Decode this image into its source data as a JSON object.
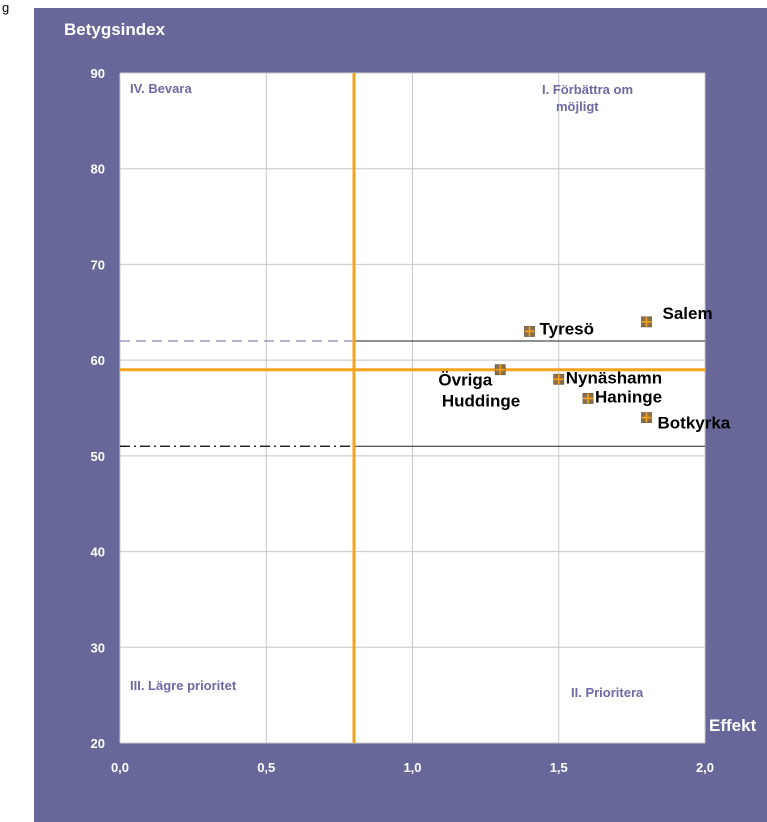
{
  "header": {
    "partial_label": "g"
  },
  "colors": {
    "panel": "#67679a",
    "plot_area": "#ffffff",
    "grid": "#c8c8c8",
    "threshold": "#f5a21c",
    "marker_fill": "#8a6f4e",
    "marker_cross": "#f5a21c",
    "upper_ref": "#8b89bd",
    "lower_ref": "#000000",
    "quadrant_text": "#6b69a6"
  },
  "chart_data": {
    "type": "scatter",
    "ylabel": "Betygsindex",
    "xlabel": "Effekt",
    "xlim": [
      0,
      2.0
    ],
    "ylim": [
      20,
      90
    ],
    "x_ticks": [
      "0,0",
      "0,5",
      "1,0",
      "1,5",
      "2,0"
    ],
    "y_ticks": [
      "20",
      "30",
      "40",
      "50",
      "60",
      "70",
      "80",
      "90"
    ],
    "grid": true,
    "points": [
      {
        "name": "Salem",
        "x": 1.8,
        "y": 64
      },
      {
        "name": "Tyresö",
        "x": 1.4,
        "y": 63
      },
      {
        "name": "Övriga Huddinge",
        "x": 1.3,
        "y": 59
      },
      {
        "name": "Nynäshamn",
        "x": 1.5,
        "y": 58
      },
      {
        "name": "Haninge",
        "x": 1.6,
        "y": 56
      },
      {
        "name": "Botkyrka",
        "x": 1.8,
        "y": 54
      }
    ],
    "thresholds": {
      "x": 0.8,
      "y": 59
    },
    "reference_lines": [
      {
        "y": 62,
        "style": "dashed"
      },
      {
        "y": 51,
        "style": "dash-dot"
      }
    ],
    "quadrants": {
      "top_left": "IV. Bevara",
      "top_right_line1": "I. Förbättra om",
      "top_right_line2": "möjligt",
      "bottom_left": "III. Lägre prioritet",
      "bottom_right": "II. Prioritera"
    }
  }
}
